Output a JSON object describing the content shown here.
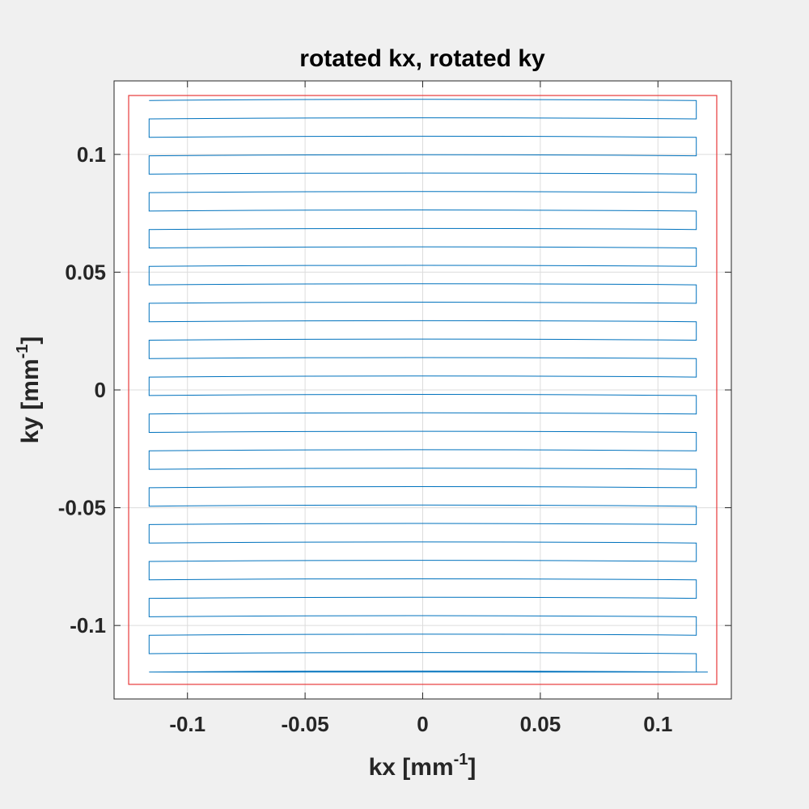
{
  "chart_data": {
    "type": "line",
    "title": "rotated kx, rotated ky",
    "xlabel": {
      "main": "kx [mm",
      "sup": "-1",
      "close": "]"
    },
    "ylabel": {
      "main": "ky [mm",
      "sup": "-1",
      "close": "]"
    },
    "xlim": [
      -0.1312,
      0.1312
    ],
    "ylim": [
      -0.1312,
      0.1312
    ],
    "xticks": [
      -0.1,
      -0.05,
      0,
      0.05,
      0.1
    ],
    "yticks": [
      -0.1,
      -0.05,
      0,
      0.05,
      0.1
    ],
    "xtick_labels": [
      "-0.1",
      "-0.05",
      "0",
      "0.05",
      "0.1"
    ],
    "ytick_labels": [
      "-0.1",
      "-0.05",
      "0",
      "0.05",
      "0.1"
    ],
    "grid": true,
    "colors": {
      "trajectory": "#0072bd",
      "boundary": "#e8393a",
      "axes_bg": "#ffffff",
      "figure_bg": "#f0f0f0"
    },
    "series": [
      {
        "type": "zigzag-trajectory",
        "x_range": [
          -0.1163,
          0.1163
        ],
        "y_start": -0.1198,
        "y_end": 0.1229,
        "lines": 32,
        "end_x": 0.1212
      },
      {
        "type": "rectangle",
        "x": [
          -0.125,
          0.125
        ],
        "y": [
          -0.125,
          0.125
        ]
      }
    ]
  }
}
